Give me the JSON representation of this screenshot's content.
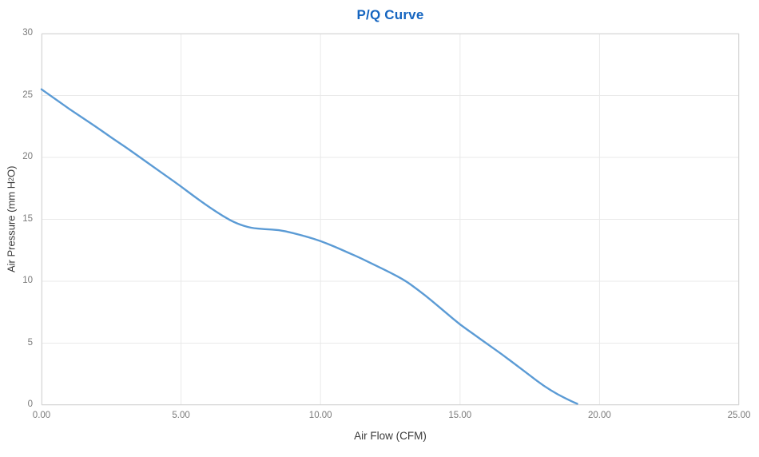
{
  "chart_data": {
    "type": "line",
    "title": "P/Q Curve",
    "xlabel": "Air Flow (CFM)",
    "ylabel": "Air Pressure (mm H2O)",
    "ylabel_parts": {
      "pre": "Air Pressure (mm H",
      "sub": "2",
      "post": "O)"
    },
    "xlim": [
      0,
      25
    ],
    "ylim": [
      0,
      30
    ],
    "grid": true,
    "legend": "none",
    "colors": {
      "title": "#1565c0",
      "line": "#5b9bd5",
      "gridline": "#e9e9e9",
      "plot_border": "#d6d6d6",
      "tick_text": "#7a7a7a",
      "axis_title_text": "#3a3a3a",
      "background": "#ffffff"
    },
    "x_ticks": [
      {
        "v": 0,
        "label": "0.00"
      },
      {
        "v": 5,
        "label": "5.00"
      },
      {
        "v": 10,
        "label": "10.00"
      },
      {
        "v": 15,
        "label": "15.00"
      },
      {
        "v": 20,
        "label": "20.00"
      },
      {
        "v": 25,
        "label": "25.00"
      }
    ],
    "y_ticks": [
      {
        "v": 0,
        "label": "0"
      },
      {
        "v": 5,
        "label": "5"
      },
      {
        "v": 10,
        "label": "10"
      },
      {
        "v": 15,
        "label": "15"
      },
      {
        "v": 20,
        "label": "20"
      },
      {
        "v": 25,
        "label": "25"
      },
      {
        "v": 30,
        "label": "30"
      }
    ],
    "series": [
      {
        "name": "P/Q",
        "points": [
          [
            0,
            25.5
          ],
          [
            0.5,
            24.7
          ],
          [
            1,
            23.9
          ],
          [
            1.5,
            23.15
          ],
          [
            2,
            22.4
          ],
          [
            2.5,
            21.6
          ],
          [
            3,
            20.85
          ],
          [
            3.5,
            20.05
          ],
          [
            4,
            19.25
          ],
          [
            4.5,
            18.45
          ],
          [
            5,
            17.65
          ],
          [
            5.5,
            16.8
          ],
          [
            6,
            16.0
          ],
          [
            6.5,
            15.25
          ],
          [
            7,
            14.65
          ],
          [
            7.5,
            14.3
          ],
          [
            8,
            14.2
          ],
          [
            8.5,
            14.15
          ],
          [
            9,
            13.9
          ],
          [
            9.5,
            13.6
          ],
          [
            10,
            13.25
          ],
          [
            10.5,
            12.8
          ],
          [
            11,
            12.3
          ],
          [
            11.5,
            11.8
          ],
          [
            12,
            11.25
          ],
          [
            12.5,
            10.7
          ],
          [
            13,
            10.1
          ],
          [
            13.5,
            9.3
          ],
          [
            14,
            8.4
          ],
          [
            14.5,
            7.45
          ],
          [
            15,
            6.5
          ],
          [
            15.5,
            5.7
          ],
          [
            16,
            4.9
          ],
          [
            16.5,
            4.1
          ],
          [
            17,
            3.25
          ],
          [
            17.5,
            2.4
          ],
          [
            18,
            1.55
          ],
          [
            18.5,
            0.85
          ],
          [
            19,
            0.3
          ],
          [
            19.2,
            0.1
          ]
        ]
      }
    ]
  }
}
